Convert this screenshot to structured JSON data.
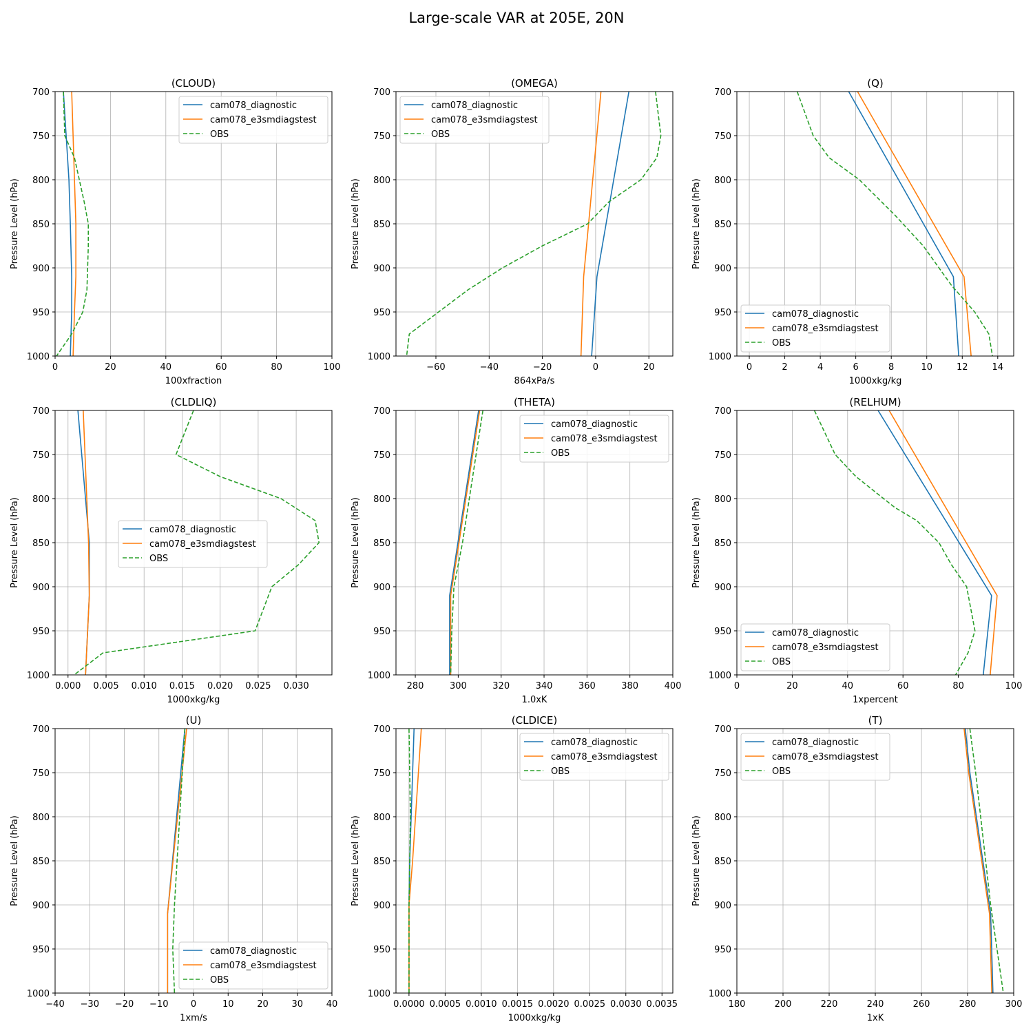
{
  "figure": {
    "title": "Large-scale VAR at 205E, 20N"
  },
  "series_style": [
    {
      "name": "cam078_diagnostic",
      "color": "#1f77b4",
      "dash": ""
    },
    {
      "name": "cam078_e3smdiagstest",
      "color": "#ff7f0e",
      "dash": ""
    },
    {
      "name": "OBS",
      "color": "#2ca02c",
      "dash": "6,3"
    }
  ],
  "chart_data": [
    {
      "type": "line",
      "title": "(CLOUD)",
      "xlabel": "100xfraction",
      "ylabel": "Pressure Level (hPa)",
      "xlim": [
        0,
        100
      ],
      "ylim": [
        1000,
        700
      ],
      "grid": true,
      "legend": "upper right",
      "xticks": [
        0,
        20,
        40,
        60,
        80,
        100
      ],
      "xtick_labels": [
        "0",
        "20",
        "40",
        "60",
        "80",
        "100"
      ],
      "yticks": [
        700,
        750,
        800,
        850,
        900,
        950,
        1000
      ],
      "ytick_labels": [
        "700",
        "750",
        "800",
        "850",
        "900",
        "950",
        "1000"
      ],
      "series": [
        {
          "name": "cam078_diagnostic",
          "x": [
            3,
            4,
            5,
            5.5,
            6,
            6,
            5.5
          ],
          "y": [
            700,
            750,
            800,
            850,
            910,
            950,
            1000
          ]
        },
        {
          "name": "cam078_e3smdiagstest",
          "x": [
            6,
            6.5,
            7,
            7.5,
            7.5,
            7,
            6.5
          ],
          "y": [
            700,
            750,
            800,
            850,
            910,
            950,
            1000
          ]
        },
        {
          "name": "OBS",
          "x": [
            3,
            3.5,
            7,
            10.5,
            12,
            12,
            11.5,
            10,
            6,
            0.5
          ],
          "y": [
            700,
            750,
            775,
            825,
            850,
            875,
            925,
            950,
            975,
            1000
          ]
        }
      ]
    },
    {
      "type": "line",
      "title": "(OMEGA)",
      "xlabel": "864xPa/s",
      "ylabel": "Pressure Level (hPa)",
      "xlim": [
        -75,
        29
      ],
      "ylim": [
        1000,
        700
      ],
      "grid": true,
      "legend": "upper left",
      "xticks": [
        -60,
        -40,
        -20,
        0,
        20
      ],
      "xtick_labels": [
        "−60",
        "−40",
        "−20",
        "0",
        "20"
      ],
      "yticks": [
        700,
        750,
        800,
        850,
        900,
        950,
        1000
      ],
      "ytick_labels": [
        "700",
        "750",
        "800",
        "850",
        "900",
        "950",
        "1000"
      ],
      "series": [
        {
          "name": "cam078_diagnostic",
          "x": [
            12.5,
            0.5,
            -1.5
          ],
          "y": [
            700,
            910,
            1000
          ]
        },
        {
          "name": "cam078_e3smdiagstest",
          "x": [
            2,
            -4.5,
            -5.5
          ],
          "y": [
            700,
            910,
            1000
          ]
        },
        {
          "name": "OBS",
          "x": [
            22.5,
            24.5,
            23,
            17,
            5,
            -3,
            -20,
            -35,
            -48,
            -70,
            -71
          ],
          "y": [
            700,
            750,
            775,
            800,
            825,
            850,
            875,
            900,
            925,
            975,
            1000
          ]
        }
      ]
    },
    {
      "type": "line",
      "title": "(Q)",
      "xlabel": "1000xkg/kg",
      "ylabel": "Pressure Level (hPa)",
      "xlim": [
        -0.7,
        14.9
      ],
      "ylim": [
        1000,
        700
      ],
      "grid": true,
      "legend": "lower left",
      "xticks": [
        0,
        2,
        4,
        6,
        8,
        10,
        12,
        14
      ],
      "xtick_labels": [
        "0",
        "2",
        "4",
        "6",
        "8",
        "10",
        "12",
        "14"
      ],
      "yticks": [
        700,
        750,
        800,
        850,
        900,
        950,
        1000
      ],
      "ytick_labels": [
        "700",
        "750",
        "800",
        "850",
        "900",
        "950",
        "1000"
      ],
      "series": [
        {
          "name": "cam078_diagnostic",
          "x": [
            5.6,
            11.5,
            11.8
          ],
          "y": [
            700,
            910,
            1000
          ]
        },
        {
          "name": "cam078_e3smdiagstest",
          "x": [
            6.1,
            12.1,
            12.5
          ],
          "y": [
            700,
            910,
            1000
          ]
        },
        {
          "name": "OBS",
          "x": [
            2.7,
            3.6,
            4.5,
            6.2,
            8.2,
            9.8,
            11.4,
            12.7,
            13.5,
            13.7
          ],
          "y": [
            700,
            750,
            775,
            800,
            840,
            875,
            920,
            950,
            975,
            1000
          ]
        }
      ]
    },
    {
      "type": "line",
      "title": "(CLDLIQ)",
      "xlabel": "1000xkg/kg",
      "ylabel": "Pressure Level (hPa)",
      "xlim": [
        -0.0017,
        0.0347
      ],
      "ylim": [
        1000,
        700
      ],
      "grid": true,
      "legend": "center left",
      "xticks": [
        0,
        0.005,
        0.01,
        0.015,
        0.02,
        0.025,
        0.03
      ],
      "xtick_labels": [
        "0.000",
        "0.005",
        "0.010",
        "0.015",
        "0.020",
        "0.025",
        "0.030"
      ],
      "yticks": [
        700,
        750,
        800,
        850,
        900,
        950,
        1000
      ],
      "ytick_labels": [
        "700",
        "750",
        "800",
        "850",
        "900",
        "950",
        "1000"
      ],
      "series": [
        {
          "name": "cam078_diagnostic",
          "x": [
            0.0013,
            0.0028,
            0.0028,
            0.0023
          ],
          "y": [
            700,
            850,
            910,
            1000
          ]
        },
        {
          "name": "cam078_e3smdiagstest",
          "x": [
            0.002,
            0.0027,
            0.0028,
            0.0023
          ],
          "y": [
            700,
            850,
            910,
            1000
          ]
        },
        {
          "name": "OBS",
          "x": [
            0.0165,
            0.0142,
            0.02,
            0.028,
            0.0325,
            0.033,
            0.0303,
            0.0268,
            0.0246,
            0.0046,
            0.0008
          ],
          "y": [
            700,
            750,
            775,
            800,
            825,
            850,
            875,
            900,
            950,
            975,
            1000
          ]
        }
      ]
    },
    {
      "type": "line",
      "title": "(THETA)",
      "xlabel": "1.0xK",
      "ylabel": "Pressure Level (hPa)",
      "xlim": [
        271,
        400
      ],
      "ylim": [
        1000,
        700
      ],
      "grid": true,
      "legend": "upper right",
      "xticks": [
        280,
        300,
        320,
        340,
        360,
        380,
        400
      ],
      "xtick_labels": [
        "280",
        "300",
        "320",
        "340",
        "360",
        "380",
        "400"
      ],
      "yticks": [
        700,
        750,
        800,
        850,
        900,
        950,
        1000
      ],
      "ytick_labels": [
        "700",
        "750",
        "800",
        "850",
        "900",
        "950",
        "1000"
      ],
      "series": [
        {
          "name": "cam078_diagnostic",
          "x": [
            309.5,
            296,
            296
          ],
          "y": [
            700,
            910,
            1000
          ]
        },
        {
          "name": "cam078_e3smdiagstest",
          "x": [
            310,
            296.5,
            296.5
          ],
          "y": [
            700,
            910,
            1000
          ]
        },
        {
          "name": "OBS",
          "x": [
            311.5,
            302,
            298,
            297,
            296.5
          ],
          "y": [
            700,
            850,
            900,
            950,
            1000
          ]
        }
      ]
    },
    {
      "type": "line",
      "title": "(RELHUM)",
      "xlabel": "1xpercent",
      "ylabel": "Pressure Level (hPa)",
      "xlim": [
        0,
        100
      ],
      "ylim": [
        1000,
        700
      ],
      "grid": true,
      "legend": "lower left",
      "xticks": [
        0,
        20,
        40,
        60,
        80,
        100
      ],
      "xtick_labels": [
        "0",
        "20",
        "40",
        "60",
        "80",
        "100"
      ],
      "yticks": [
        700,
        750,
        800,
        850,
        900,
        950,
        1000
      ],
      "ytick_labels": [
        "700",
        "750",
        "800",
        "850",
        "900",
        "950",
        "1000"
      ],
      "series": [
        {
          "name": "cam078_diagnostic",
          "x": [
            51,
            92,
            89
          ],
          "y": [
            700,
            910,
            1000
          ]
        },
        {
          "name": "cam078_e3smdiagstest",
          "x": [
            55,
            94,
            91.5
          ],
          "y": [
            700,
            910,
            1000
          ]
        },
        {
          "name": "OBS",
          "x": [
            28,
            35.5,
            43,
            57,
            65,
            73,
            77.5,
            83,
            86,
            83.5,
            79
          ],
          "y": [
            700,
            750,
            775,
            810,
            825,
            850,
            875,
            900,
            950,
            975,
            1000
          ]
        }
      ]
    },
    {
      "type": "line",
      "title": "(U)",
      "xlabel": "1xm/s",
      "ylabel": "Pressure Level (hPa)",
      "xlim": [
        -40,
        40
      ],
      "ylim": [
        1000,
        700
      ],
      "grid": true,
      "legend": "lower right",
      "xticks": [
        -40,
        -30,
        -20,
        -10,
        0,
        10,
        20,
        30,
        40
      ],
      "xtick_labels": [
        "−40",
        "−30",
        "−20",
        "−10",
        "0",
        "10",
        "20",
        "30",
        "40"
      ],
      "yticks": [
        700,
        750,
        800,
        850,
        900,
        950,
        1000
      ],
      "ytick_labels": [
        "700",
        "750",
        "800",
        "850",
        "900",
        "950",
        "1000"
      ],
      "series": [
        {
          "name": "cam078_diagnostic",
          "x": [
            -2.5,
            -7.5,
            -7.5
          ],
          "y": [
            700,
            910,
            1000
          ]
        },
        {
          "name": "cam078_e3smdiagstest",
          "x": [
            -2,
            -7.5,
            -7.5
          ],
          "y": [
            700,
            910,
            1000
          ]
        },
        {
          "name": "OBS",
          "x": [
            -2.5,
            -4,
            -5.5,
            -6,
            -5.5
          ],
          "y": [
            700,
            800,
            900,
            950,
            1000
          ]
        }
      ]
    },
    {
      "type": "line",
      "title": "(CLDICE)",
      "xlabel": "1000xkg/kg",
      "ylabel": "Pressure Level (hPa)",
      "xlim": [
        -0.00018,
        0.00365
      ],
      "ylim": [
        1000,
        700
      ],
      "grid": true,
      "legend": "upper right",
      "xticks": [
        0,
        0.0005,
        0.001,
        0.0015,
        0.002,
        0.0025,
        0.003,
        0.0035
      ],
      "xtick_labels": [
        "0.0000",
        "0.0005",
        "0.0010",
        "0.0015",
        "0.0020",
        "0.0025",
        "0.0030",
        "0.0035"
      ],
      "yticks": [
        700,
        750,
        800,
        850,
        900,
        950,
        1000
      ],
      "ytick_labels": [
        "700",
        "750",
        "800",
        "850",
        "900",
        "950",
        "1000"
      ],
      "series": [
        {
          "name": "cam078_diagnostic",
          "x": [
            7e-05,
            1e-05,
            0.0,
            0.0
          ],
          "y": [
            700,
            850,
            900,
            1000
          ]
        },
        {
          "name": "cam078_e3smdiagstest",
          "x": [
            0.00017,
            5e-05,
            0.0,
            0.0
          ],
          "y": [
            700,
            850,
            900,
            1000
          ]
        },
        {
          "name": "OBS",
          "x": [
            0.0,
            2e-05,
            1e-05,
            0.0,
            0.0
          ],
          "y": [
            700,
            800,
            850,
            900,
            1000
          ]
        }
      ]
    },
    {
      "type": "line",
      "title": "(T)",
      "xlabel": "1xK",
      "ylabel": "Pressure Level (hPa)",
      "xlim": [
        180,
        300
      ],
      "ylim": [
        1000,
        700
      ],
      "grid": true,
      "legend": "upper left",
      "xticks": [
        180,
        200,
        220,
        240,
        260,
        280,
        300
      ],
      "xtick_labels": [
        "180",
        "200",
        "220",
        "240",
        "260",
        "280",
        "300"
      ],
      "yticks": [
        700,
        750,
        800,
        850,
        900,
        950,
        1000
      ],
      "ytick_labels": [
        "700",
        "750",
        "800",
        "850",
        "900",
        "950",
        "1000"
      ],
      "series": [
        {
          "name": "cam078_diagnostic",
          "x": [
            279,
            281,
            290,
            291
          ],
          "y": [
            700,
            750,
            910,
            1000
          ]
        },
        {
          "name": "cam078_e3smdiagstest",
          "x": [
            278.5,
            280.5,
            289.5,
            290.5
          ],
          "y": [
            700,
            750,
            910,
            1000
          ]
        },
        {
          "name": "OBS",
          "x": [
            281,
            283.5,
            290,
            295.5
          ],
          "y": [
            700,
            750,
            900,
            1000
          ]
        }
      ]
    }
  ]
}
